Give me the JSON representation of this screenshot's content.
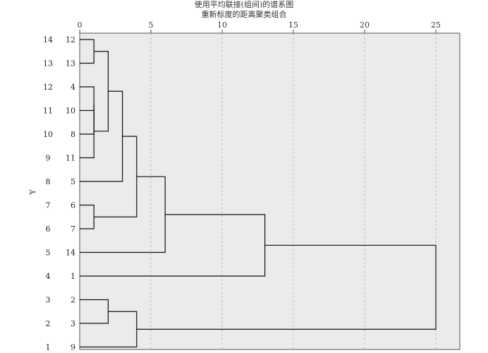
{
  "chart_data": {
    "type": "dendrogram",
    "title": "使用平均联接(组间)的谱系图",
    "subtitle": "重新标度的距离聚类组合",
    "ylabel": "Y",
    "x_ticks": [
      0,
      5,
      10,
      15,
      20,
      25
    ],
    "xlim": [
      0,
      26
    ],
    "grid": true,
    "y_axis_labels": [
      "14",
      "13",
      "12",
      "11",
      "10",
      "9",
      "8",
      "7",
      "6",
      "5",
      "4",
      "3",
      "2",
      "1"
    ],
    "leaves": [
      "12",
      "13",
      "4",
      "10",
      "8",
      "11",
      "5",
      "6",
      "7",
      "14",
      "1",
      "2",
      "3",
      "9"
    ],
    "merges": [
      {
        "id": "m1",
        "a": "12",
        "b": "13",
        "distance": 1
      },
      {
        "id": "m2",
        "a": "10",
        "b": "8",
        "distance": 1
      },
      {
        "id": "m3",
        "a": "4",
        "b": "m2",
        "distance": 1
      },
      {
        "id": "m4",
        "a": "m3",
        "b": "11",
        "distance": 1
      },
      {
        "id": "m5",
        "a": "6",
        "b": "7",
        "distance": 1
      },
      {
        "id": "m6",
        "a": "2",
        "b": "3",
        "distance": 2
      },
      {
        "id": "m7",
        "a": "m1",
        "b": "m4",
        "distance": 2
      },
      {
        "id": "m8",
        "a": "m7",
        "b": "5",
        "distance": 3
      },
      {
        "id": "m9",
        "a": "m8",
        "b": "m5",
        "distance": 4
      },
      {
        "id": "m10",
        "a": "m6",
        "b": "9",
        "distance": 4
      },
      {
        "id": "m11",
        "a": "m9",
        "b": "14",
        "distance": 6
      },
      {
        "id": "m12",
        "a": "m11",
        "b": "1",
        "distance": 13
      },
      {
        "id": "m13",
        "a": "m12",
        "b": "m10",
        "distance": 25
      }
    ]
  }
}
